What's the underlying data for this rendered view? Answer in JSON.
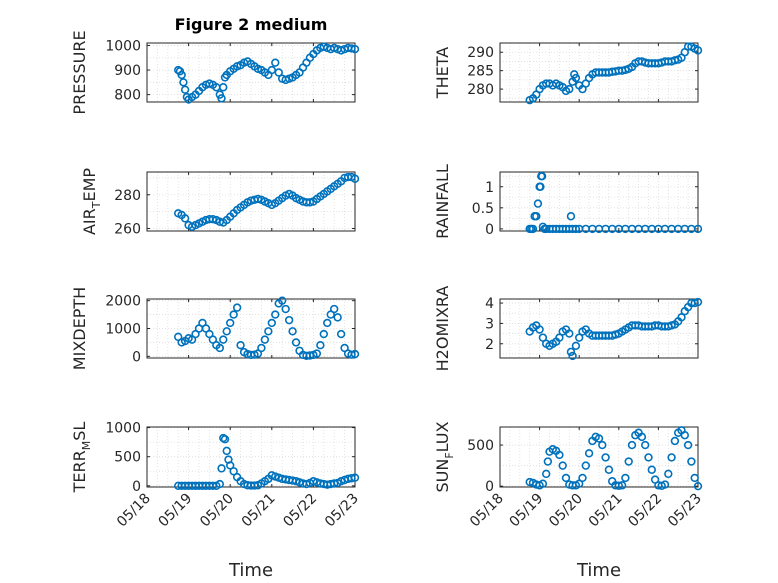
{
  "figure": {
    "title": "Figure 2 medium",
    "marker_color": "#0072BD",
    "axis_color": "#262626",
    "grid_color": "#dcdcdc"
  },
  "chart_data": [
    {
      "type": "scatter",
      "name": "pressure",
      "ylabel": "PRESSURE",
      "ylabel_parts": [
        [
          "PRESSURE",
          ""
        ]
      ],
      "xlim": [
        "05/18",
        "05/23"
      ],
      "ylim": [
        770,
        1010
      ],
      "yticks": [
        "800",
        "900",
        "1000"
      ],
      "ytick_values": [
        800,
        900,
        1000
      ],
      "xticks": [],
      "xlabel": "",
      "x": [
        "05/18 18:00",
        "05/18 19:00",
        "05/18 20:00",
        "05/18 21:00",
        "05/18 22:00",
        "05/18 23:00",
        "05/19 00:00",
        "05/19 02:00",
        "05/19 04:00",
        "05/19 06:00",
        "05/19 08:00",
        "05/19 10:00",
        "05/19 12:00",
        "05/19 14:00",
        "05/19 16:00",
        "05/19 18:00",
        "05/19 19:00",
        "05/19 20:00",
        "05/19 21:00",
        "05/19 22:00",
        "05/20 00:00",
        "05/20 02:00",
        "05/20 04:00",
        "05/20 06:00",
        "05/20 08:00",
        "05/20 10:00",
        "05/20 12:00",
        "05/20 14:00",
        "05/20 16:00",
        "05/20 18:00",
        "05/20 20:00",
        "05/20 22:00",
        "05/21 00:00",
        "05/21 02:00",
        "05/21 04:00",
        "05/21 06:00",
        "05/21 08:00",
        "05/21 10:00",
        "05/21 12:00",
        "05/21 14:00",
        "05/21 16:00",
        "05/21 18:00",
        "05/21 20:00",
        "05/21 22:00",
        "05/22 00:00",
        "05/22 02:00",
        "05/22 04:00",
        "05/22 06:00",
        "05/22 08:00",
        "05/22 10:00",
        "05/22 12:00",
        "05/22 14:00",
        "05/22 16:00",
        "05/22 18:00",
        "05/22 20:00",
        "05/22 22:00",
        "05/23 00:00"
      ],
      "y": [
        900,
        895,
        880,
        850,
        820,
        790,
        780,
        790,
        800,
        815,
        830,
        840,
        845,
        840,
        830,
        800,
        785,
        830,
        870,
        880,
        895,
        905,
        915,
        920,
        930,
        935,
        925,
        915,
        905,
        900,
        890,
        880,
        900,
        930,
        890,
        865,
        860,
        865,
        870,
        880,
        890,
        910,
        930,
        950,
        965,
        980,
        990,
        995,
        990,
        985,
        990,
        985,
        980,
        985,
        990,
        988,
        985
      ]
    },
    {
      "type": "scatter",
      "name": "theta",
      "ylabel": "THETA",
      "ylabel_parts": [
        [
          "THETA",
          ""
        ]
      ],
      "xlim": [
        "05/18",
        "05/23"
      ],
      "ylim": [
        276.5,
        292.5
      ],
      "yticks": [
        "280",
        "285",
        "290"
      ],
      "ytick_values": [
        280,
        285,
        290
      ],
      "xticks": [],
      "xlabel": "",
      "x": [
        "05/18 18:00",
        "05/18 20:00",
        "05/18 22:00",
        "05/19 00:00",
        "05/19 02:00",
        "05/19 04:00",
        "05/19 06:00",
        "05/19 08:00",
        "05/19 10:00",
        "05/19 12:00",
        "05/19 14:00",
        "05/19 16:00",
        "05/19 18:00",
        "05/19 20:00",
        "05/19 21:00",
        "05/19 22:00",
        "05/20 00:00",
        "05/20 02:00",
        "05/20 04:00",
        "05/20 06:00",
        "05/20 08:00",
        "05/20 10:00",
        "05/20 12:00",
        "05/20 14:00",
        "05/20 16:00",
        "05/20 18:00",
        "05/20 20:00",
        "05/20 22:00",
        "05/21 00:00",
        "05/21 02:00",
        "05/21 04:00",
        "05/21 06:00",
        "05/21 08:00",
        "05/21 10:00",
        "05/21 12:00",
        "05/21 14:00",
        "05/21 16:00",
        "05/21 18:00",
        "05/21 20:00",
        "05/21 22:00",
        "05/22 00:00",
        "05/22 02:00",
        "05/22 04:00",
        "05/22 06:00",
        "05/22 08:00",
        "05/22 10:00",
        "05/22 12:00",
        "05/22 14:00",
        "05/22 16:00",
        "05/22 18:00",
        "05/22 20:00",
        "05/22 22:00",
        "05/23 00:00"
      ],
      "y": [
        277,
        277.5,
        278.5,
        280,
        281,
        281.5,
        281.5,
        281,
        281.5,
        281,
        280.5,
        279.5,
        280,
        282,
        284,
        283,
        281,
        280,
        281.5,
        283,
        284,
        284.5,
        284.5,
        284.5,
        284.5,
        284.5,
        284.7,
        284.8,
        285,
        285,
        285.2,
        285.5,
        286,
        287,
        287.5,
        287.5,
        287.2,
        287,
        287,
        287,
        287,
        287.2,
        287.5,
        287.5,
        287.5,
        287.8,
        288,
        288.5,
        290,
        291.5,
        291.5,
        291,
        290.5
      ]
    },
    {
      "type": "scatter",
      "name": "air_temp",
      "ylabel": "AIR_TEMP",
      "ylabel_parts": [
        [
          "AIR",
          ""
        ],
        [
          "T",
          "sub"
        ],
        [
          "EMP",
          ""
        ]
      ],
      "xlim": [
        "05/18",
        "05/23"
      ],
      "ylim": [
        258.5,
        293.5
      ],
      "yticks": [
        "260",
        "280"
      ],
      "ytick_values": [
        260,
        280
      ],
      "xticks": [],
      "xlabel": "",
      "x": [
        "05/18 18:00",
        "05/18 20:00",
        "05/18 22:00",
        "05/19 00:00",
        "05/19 02:00",
        "05/19 04:00",
        "05/19 06:00",
        "05/19 08:00",
        "05/19 10:00",
        "05/19 12:00",
        "05/19 14:00",
        "05/19 16:00",
        "05/19 18:00",
        "05/19 20:00",
        "05/19 22:00",
        "05/20 00:00",
        "05/20 02:00",
        "05/20 04:00",
        "05/20 06:00",
        "05/20 08:00",
        "05/20 10:00",
        "05/20 12:00",
        "05/20 14:00",
        "05/20 16:00",
        "05/20 18:00",
        "05/20 20:00",
        "05/20 22:00",
        "05/21 00:00",
        "05/21 02:00",
        "05/21 04:00",
        "05/21 06:00",
        "05/21 08:00",
        "05/21 10:00",
        "05/21 12:00",
        "05/21 14:00",
        "05/21 16:00",
        "05/21 18:00",
        "05/21 20:00",
        "05/21 22:00",
        "05/22 00:00",
        "05/22 02:00",
        "05/22 04:00",
        "05/22 06:00",
        "05/22 08:00",
        "05/22 10:00",
        "05/22 12:00",
        "05/22 14:00",
        "05/22 16:00",
        "05/22 18:00",
        "05/22 20:00",
        "05/22 22:00",
        "05/23 00:00"
      ],
      "y": [
        269,
        268,
        266,
        262,
        261,
        262,
        263,
        264,
        265,
        265.5,
        265.5,
        265,
        264,
        263.5,
        265,
        267,
        269,
        271,
        272.5,
        274,
        275.5,
        276.5,
        277,
        277.5,
        277,
        276,
        275,
        274,
        275,
        276.5,
        278,
        279.5,
        280.5,
        279.5,
        278,
        277,
        276,
        275.5,
        275.5,
        276,
        277.5,
        279,
        280.5,
        282,
        283.5,
        285,
        286.5,
        288,
        290,
        290.5,
        290.5,
        289.5
      ]
    },
    {
      "type": "scatter",
      "name": "rainfall",
      "ylabel": "RAINFALL",
      "ylabel_parts": [
        [
          "RAINFALL",
          ""
        ]
      ],
      "xlim": [
        "05/18",
        "05/23"
      ],
      "ylim": [
        -0.05,
        1.35
      ],
      "yticks": [
        "0",
        "0.5",
        "1"
      ],
      "ytick_values": [
        0,
        0.5,
        1
      ],
      "xticks": [],
      "xlabel": "",
      "x": [
        "05/18 18:00",
        "05/18 19:00",
        "05/18 20:00",
        "05/18 21:00",
        "05/18 22:00",
        "05/18 23:00",
        "05/19 00:00",
        "05/19 00:30",
        "05/19 01:00",
        "05/19 01:30",
        "05/19 02:00",
        "05/19 03:00",
        "05/19 04:00",
        "05/19 06:00",
        "05/19 08:00",
        "05/19 10:00",
        "05/19 12:00",
        "05/19 14:00",
        "05/19 16:00",
        "05/19 18:00",
        "05/19 19:00",
        "05/19 20:00",
        "05/19 22:00",
        "05/20 00:00",
        "05/20 04:00",
        "05/20 08:00",
        "05/20 12:00",
        "05/20 16:00",
        "05/20 20:00",
        "05/21 00:00",
        "05/21 04:00",
        "05/21 08:00",
        "05/21 12:00",
        "05/21 16:00",
        "05/21 20:00",
        "05/22 00:00",
        "05/22 04:00",
        "05/22 08:00",
        "05/22 12:00",
        "05/22 16:00",
        "05/22 20:00",
        "05/23 00:00"
      ],
      "y": [
        0,
        0,
        0,
        0.3,
        0.3,
        0.6,
        1.0,
        1.0,
        1.25,
        1.25,
        0.05,
        0,
        0,
        0,
        0,
        0,
        0,
        0,
        0,
        0,
        0.3,
        0,
        0,
        0,
        0,
        0,
        0,
        0,
        0,
        0,
        0,
        0,
        0,
        0,
        0,
        0,
        0,
        0,
        0,
        0,
        0,
        0
      ]
    },
    {
      "type": "scatter",
      "name": "mixdepth",
      "ylabel": "MIXDEPTH",
      "ylabel_parts": [
        [
          "MIXDEPTH",
          ""
        ]
      ],
      "xlim": [
        "05/18",
        "05/23"
      ],
      "ylim": [
        -60,
        2060
      ],
      "yticks": [
        "0",
        "1000",
        "2000"
      ],
      "ytick_values": [
        0,
        1000,
        2000
      ],
      "xticks": [],
      "xlabel": "",
      "x": [
        "05/18 18:00",
        "05/18 20:00",
        "05/18 22:00",
        "05/19 00:00",
        "05/19 02:00",
        "05/19 04:00",
        "05/19 06:00",
        "05/19 08:00",
        "05/19 10:00",
        "05/19 12:00",
        "05/19 14:00",
        "05/19 16:00",
        "05/19 18:00",
        "05/19 20:00",
        "05/19 22:00",
        "05/20 00:00",
        "05/20 02:00",
        "05/20 04:00",
        "05/20 06:00",
        "05/20 08:00",
        "05/20 10:00",
        "05/20 12:00",
        "05/20 14:00",
        "05/20 16:00",
        "05/20 18:00",
        "05/20 20:00",
        "05/20 22:00",
        "05/21 00:00",
        "05/21 02:00",
        "05/21 04:00",
        "05/21 06:00",
        "05/21 08:00",
        "05/21 10:00",
        "05/21 12:00",
        "05/21 14:00",
        "05/21 16:00",
        "05/21 18:00",
        "05/21 20:00",
        "05/21 22:00",
        "05/22 00:00",
        "05/22 02:00",
        "05/22 04:00",
        "05/22 06:00",
        "05/22 08:00",
        "05/22 10:00",
        "05/22 12:00",
        "05/22 14:00",
        "05/22 16:00",
        "05/22 18:00",
        "05/22 20:00",
        "05/22 22:00",
        "05/23 00:00"
      ],
      "y": [
        700,
        500,
        550,
        650,
        600,
        800,
        1000,
        1200,
        1000,
        800,
        600,
        400,
        300,
        600,
        900,
        1200,
        1500,
        1750,
        400,
        150,
        80,
        50,
        60,
        100,
        300,
        600,
        900,
        1200,
        1500,
        1900,
        2000,
        1700,
        1300,
        900,
        500,
        200,
        50,
        20,
        30,
        50,
        100,
        400,
        800,
        1200,
        1500,
        1700,
        1400,
        800,
        300,
        100,
        60,
        80
      ]
    },
    {
      "type": "scatter",
      "name": "h2omixra",
      "ylabel": "H2OMIXRA",
      "ylabel_parts": [
        [
          "H2OMIXRA",
          ""
        ]
      ],
      "xlim": [
        "05/18",
        "05/23"
      ],
      "ylim": [
        1.3,
        4.2
      ],
      "yticks": [
        "2",
        "3",
        "4"
      ],
      "ytick_values": [
        2,
        3,
        4
      ],
      "xticks": [],
      "xlabel": "",
      "x": [
        "05/18 18:00",
        "05/18 20:00",
        "05/18 22:00",
        "05/19 00:00",
        "05/19 02:00",
        "05/19 04:00",
        "05/19 06:00",
        "05/19 08:00",
        "05/19 10:00",
        "05/19 12:00",
        "05/19 14:00",
        "05/19 16:00",
        "05/19 18:00",
        "05/19 19:00",
        "05/19 20:00",
        "05/19 22:00",
        "05/20 00:00",
        "05/20 02:00",
        "05/20 04:00",
        "05/20 06:00",
        "05/20 08:00",
        "05/20 10:00",
        "05/20 12:00",
        "05/20 14:00",
        "05/20 16:00",
        "05/20 18:00",
        "05/20 20:00",
        "05/20 22:00",
        "05/21 00:00",
        "05/21 02:00",
        "05/21 04:00",
        "05/21 06:00",
        "05/21 08:00",
        "05/21 10:00",
        "05/21 12:00",
        "05/21 14:00",
        "05/21 16:00",
        "05/21 18:00",
        "05/21 20:00",
        "05/21 22:00",
        "05/22 00:00",
        "05/22 02:00",
        "05/22 04:00",
        "05/22 06:00",
        "05/22 08:00",
        "05/22 10:00",
        "05/22 12:00",
        "05/22 14:00",
        "05/22 16:00",
        "05/22 18:00",
        "05/22 20:00",
        "05/22 22:00",
        "05/23 00:00"
      ],
      "y": [
        2.6,
        2.8,
        2.9,
        2.7,
        2.3,
        2.0,
        1.9,
        2.0,
        2.1,
        2.3,
        2.6,
        2.7,
        2.5,
        1.6,
        1.4,
        1.9,
        2.3,
        2.6,
        2.7,
        2.5,
        2.4,
        2.4,
        2.4,
        2.4,
        2.4,
        2.4,
        2.4,
        2.45,
        2.5,
        2.6,
        2.7,
        2.8,
        2.9,
        2.9,
        2.9,
        2.85,
        2.85,
        2.85,
        2.85,
        2.9,
        2.9,
        2.85,
        2.85,
        2.85,
        2.9,
        2.95,
        3.1,
        3.3,
        3.6,
        3.8,
        4.0,
        4.0,
        4.05
      ]
    },
    {
      "type": "scatter",
      "name": "terr_msl",
      "ylabel": "TERR_MSL",
      "ylabel_parts": [
        [
          "TERR",
          ""
        ],
        [
          "M",
          "sub"
        ],
        [
          "SL",
          ""
        ]
      ],
      "xlim": [
        "05/18",
        "05/23"
      ],
      "ylim": [
        -20,
        1010
      ],
      "yticks": [
        "0",
        "500",
        "1000"
      ],
      "ytick_values": [
        0,
        500,
        1000
      ],
      "xticks": [
        "05/18",
        "05/19",
        "05/20",
        "05/21",
        "05/22",
        "05/23"
      ],
      "xlabel": "Time",
      "x": [
        "05/18 18:00",
        "05/18 20:00",
        "05/18 22:00",
        "05/19 00:00",
        "05/19 02:00",
        "05/19 04:00",
        "05/19 06:00",
        "05/19 08:00",
        "05/19 10:00",
        "05/19 12:00",
        "05/19 14:00",
        "05/19 16:00",
        "05/19 18:00",
        "05/19 19:00",
        "05/19 20:00",
        "05/19 21:00",
        "05/19 22:00",
        "05/19 23:00",
        "05/20 00:00",
        "05/20 02:00",
        "05/20 04:00",
        "05/20 06:00",
        "05/20 08:00",
        "05/20 10:00",
        "05/20 12:00",
        "05/20 14:00",
        "05/20 16:00",
        "05/20 18:00",
        "05/20 20:00",
        "05/20 22:00",
        "05/21 00:00",
        "05/21 02:00",
        "05/21 04:00",
        "05/21 06:00",
        "05/21 08:00",
        "05/21 10:00",
        "05/21 12:00",
        "05/21 14:00",
        "05/21 16:00",
        "05/21 18:00",
        "05/21 20:00",
        "05/21 22:00",
        "05/22 00:00",
        "05/22 02:00",
        "05/22 04:00",
        "05/22 06:00",
        "05/22 08:00",
        "05/22 10:00",
        "05/22 12:00",
        "05/22 14:00",
        "05/22 16:00",
        "05/22 18:00",
        "05/22 20:00",
        "05/22 22:00",
        "05/23 00:00"
      ],
      "y": [
        0,
        0,
        0,
        0,
        0,
        0,
        0,
        0,
        0,
        0,
        0,
        0,
        30,
        300,
        820,
        800,
        600,
        450,
        350,
        250,
        150,
        80,
        30,
        10,
        5,
        5,
        10,
        40,
        80,
        120,
        180,
        160,
        140,
        120,
        110,
        100,
        90,
        80,
        60,
        40,
        30,
        50,
        80,
        60,
        40,
        30,
        20,
        30,
        40,
        50,
        80,
        100,
        120,
        130,
        140
      ]
    },
    {
      "type": "scatter",
      "name": "sun_flux",
      "ylabel": "SUN_FLUX",
      "ylabel_parts": [
        [
          "SUN",
          ""
        ],
        [
          "F",
          "sub"
        ],
        [
          "LUX",
          ""
        ]
      ],
      "xlim": [
        "05/18",
        "05/23"
      ],
      "ylim": [
        -10,
        720
      ],
      "yticks": [
        "0",
        "500"
      ],
      "ytick_values": [
        0,
        500
      ],
      "xticks": [
        "05/18",
        "05/19",
        "05/20",
        "05/21",
        "05/22",
        "05/23"
      ],
      "xlabel": "Time",
      "x": [
        "05/18 18:00",
        "05/18 20:00",
        "05/18 22:00",
        "05/19 00:00",
        "05/19 02:00",
        "05/19 04:00",
        "05/19 05:00",
        "05/19 06:00",
        "05/19 08:00",
        "05/19 10:00",
        "05/19 12:00",
        "05/19 14:00",
        "05/19 16:00",
        "05/19 18:00",
        "05/19 20:00",
        "05/19 22:00",
        "05/20 00:00",
        "05/20 02:00",
        "05/20 04:00",
        "05/20 06:00",
        "05/20 08:00",
        "05/20 10:00",
        "05/20 12:00",
        "05/20 14:00",
        "05/20 16:00",
        "05/20 18:00",
        "05/20 20:00",
        "05/20 22:00",
        "05/21 00:00",
        "05/21 02:00",
        "05/21 04:00",
        "05/21 06:00",
        "05/21 08:00",
        "05/21 10:00",
        "05/21 12:00",
        "05/21 14:00",
        "05/21 16:00",
        "05/21 18:00",
        "05/21 20:00",
        "05/21 22:00",
        "05/22 00:00",
        "05/22 02:00",
        "05/22 04:00",
        "05/22 06:00",
        "05/22 08:00",
        "05/22 10:00",
        "05/22 12:00",
        "05/22 14:00",
        "05/22 16:00",
        "05/22 18:00",
        "05/22 20:00",
        "05/22 22:00",
        "05/23 00:00"
      ],
      "y": [
        50,
        40,
        20,
        10,
        30,
        150,
        300,
        420,
        450,
        430,
        380,
        250,
        100,
        20,
        10,
        10,
        30,
        100,
        250,
        400,
        550,
        600,
        580,
        500,
        350,
        200,
        60,
        10,
        5,
        10,
        100,
        300,
        500,
        620,
        650,
        600,
        500,
        350,
        200,
        80,
        10,
        5,
        20,
        150,
        350,
        550,
        650,
        680,
        620,
        500,
        300,
        100,
        0
      ]
    }
  ]
}
